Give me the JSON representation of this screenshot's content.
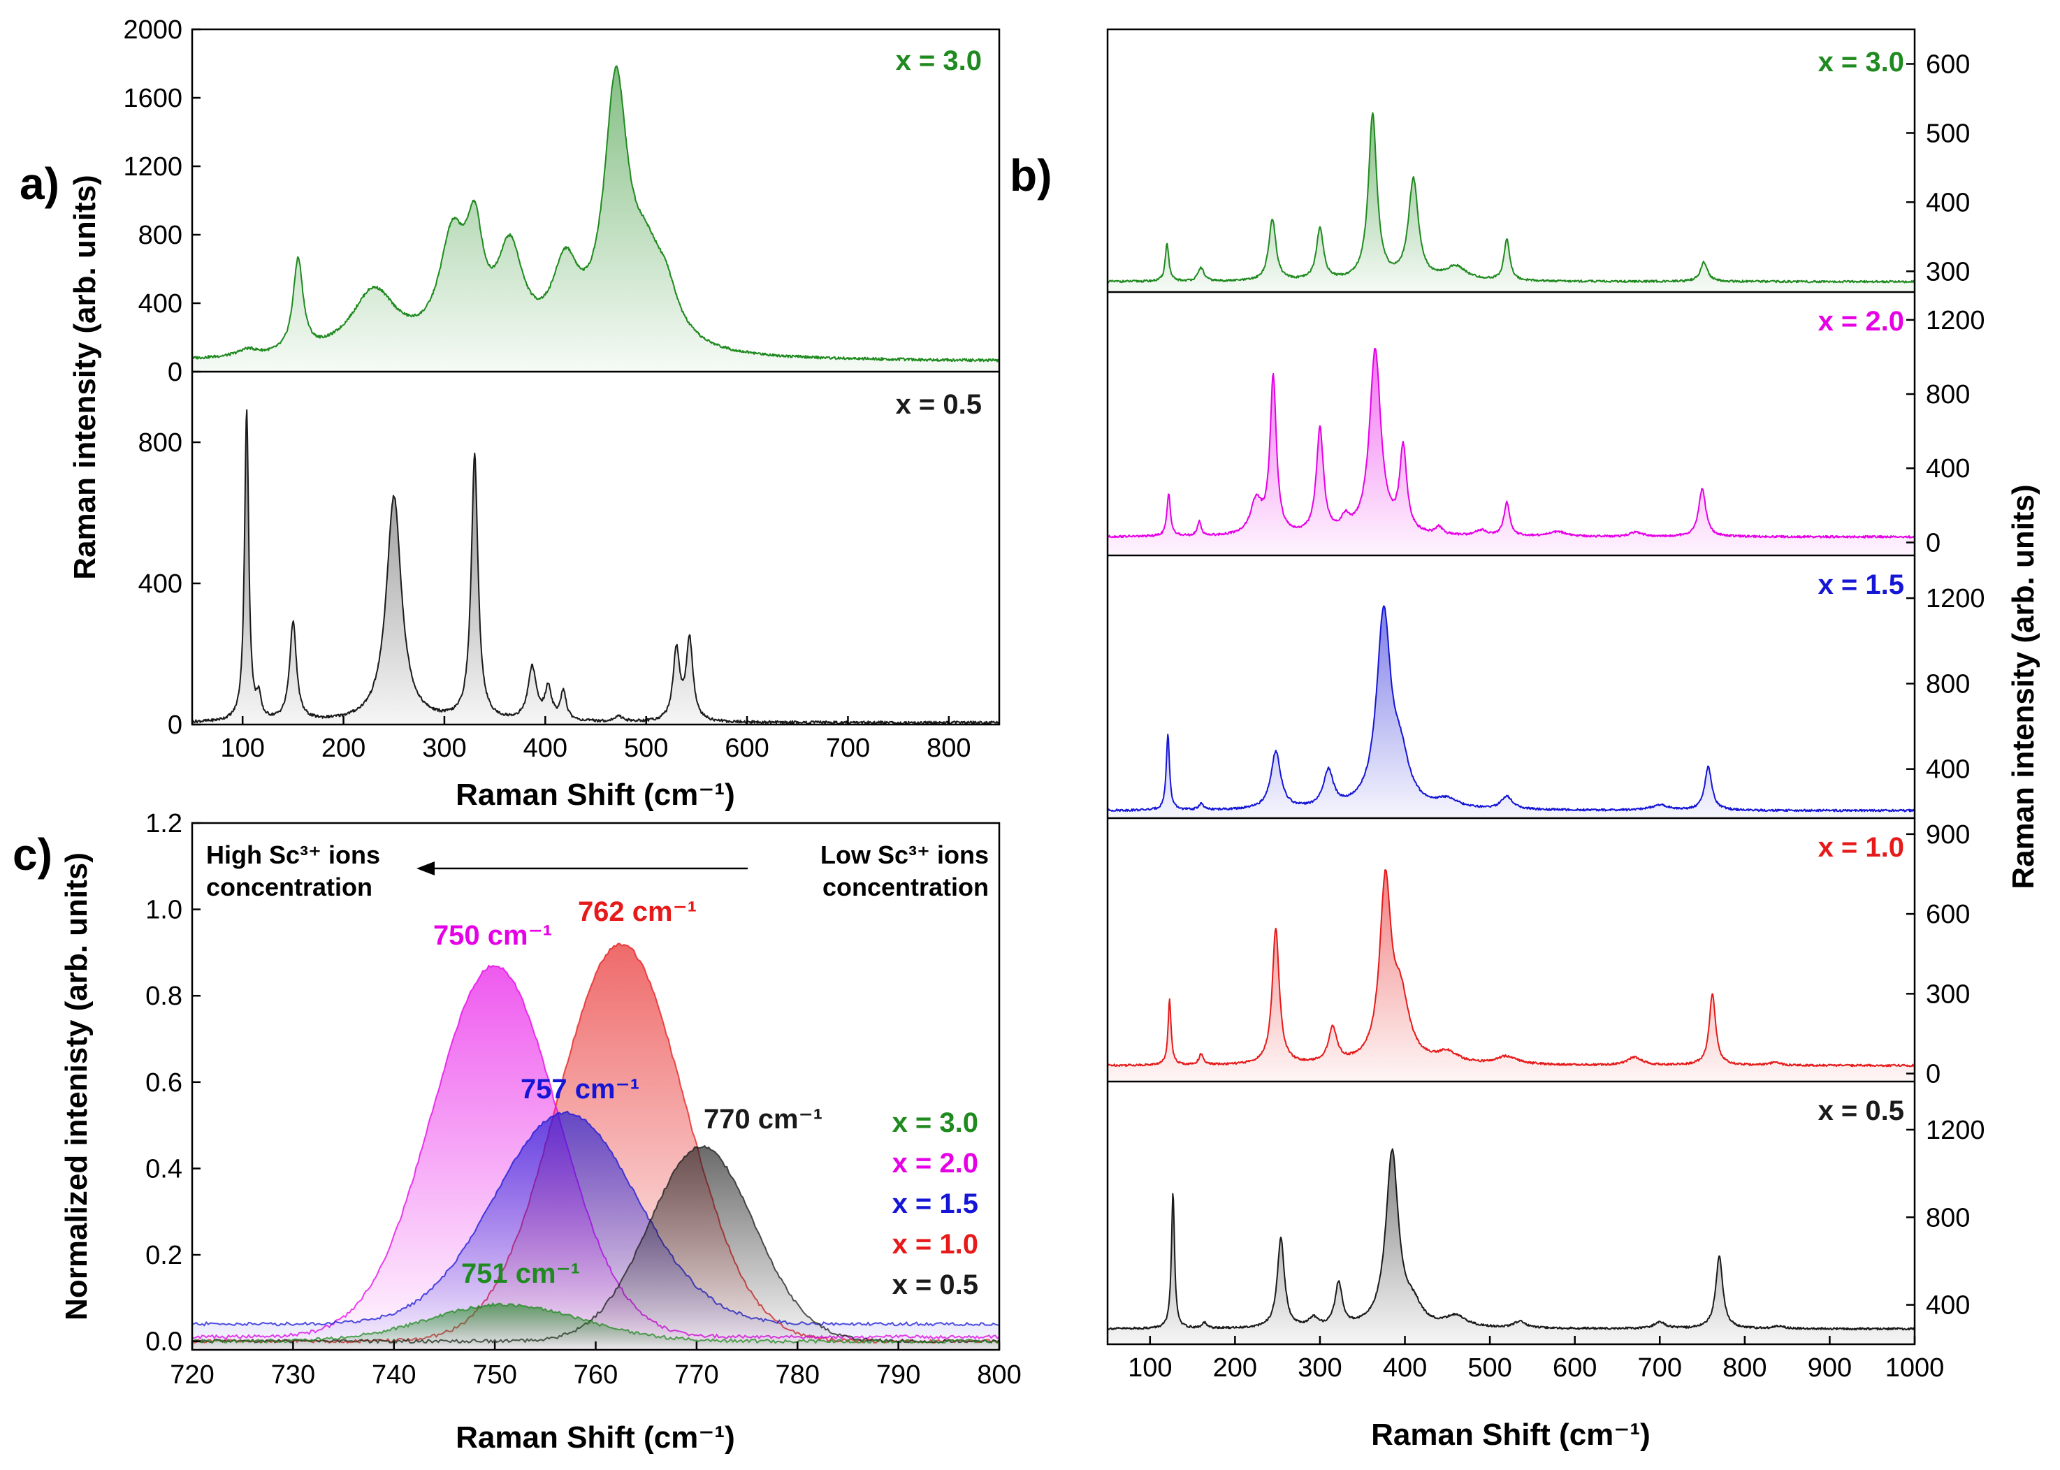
{
  "panel_labels": {
    "a": "a)",
    "b": "b)",
    "c": "c)"
  },
  "colors": {
    "x30": "#1f8a1f",
    "x20": "#e600e6",
    "x15": "#1515d6",
    "x10": "#e61a1a",
    "x05": "#1a1a1a"
  },
  "chart_data": [
    {
      "id": "a",
      "type": "line",
      "title": "",
      "xlabel": "Raman Shift (cm⁻¹)",
      "ylabel": "Raman intensity (arb. units)",
      "xlim": [
        50,
        850
      ],
      "xticks": [
        100,
        200,
        300,
        400,
        500,
        600,
        700,
        800
      ],
      "series": [
        {
          "name": "x = 3.0",
          "ylim": [
            0,
            2000
          ],
          "yticks": [
            0,
            400,
            800,
            1200,
            1600,
            2000
          ],
          "baseline": 60,
          "peaks": [
            [
              105,
              40,
              12
            ],
            [
              155,
              540,
              6
            ],
            [
              230,
              380,
              28
            ],
            [
              308,
              620,
              16
            ],
            [
              330,
              560,
              10
            ],
            [
              365,
              560,
              16
            ],
            [
              420,
              450,
              16
            ],
            [
              470,
              1480,
              14
            ],
            [
              500,
              450,
              22
            ],
            [
              520,
              200,
              14
            ]
          ]
        },
        {
          "name": "x = 0.5",
          "ylim": [
            0,
            1000
          ],
          "yticks": [
            0,
            400,
            800
          ],
          "baseline": 5,
          "peaks": [
            [
              104,
              880,
              2.5
            ],
            [
              116,
              60,
              2.5
            ],
            [
              150,
              280,
              4
            ],
            [
              250,
              640,
              9
            ],
            [
              330,
              750,
              4
            ],
            [
              387,
              150,
              5
            ],
            [
              403,
              90,
              4
            ],
            [
              418,
              80,
              3.5
            ],
            [
              473,
              15,
              5
            ],
            [
              530,
              200,
              4
            ],
            [
              543,
              230,
              4
            ]
          ]
        }
      ]
    },
    {
      "id": "b",
      "type": "line",
      "xlabel": "Raman Shift (cm⁻¹)",
      "ylabel": "Raman intensity (arb. units)",
      "xlim": [
        50,
        1000
      ],
      "xticks": [
        100,
        200,
        300,
        400,
        500,
        600,
        700,
        800,
        900,
        1000
      ],
      "series": [
        {
          "name": "x = 3.0",
          "ylim": [
            270,
            650
          ],
          "yticks": [
            300,
            400,
            500,
            600
          ],
          "baseline": 285,
          "peaks": [
            [
              120,
              55,
              2.5
            ],
            [
              160,
              20,
              4
            ],
            [
              244,
              90,
              5
            ],
            [
              300,
              75,
              5
            ],
            [
              362,
              240,
              6
            ],
            [
              410,
              145,
              7
            ],
            [
              460,
              20,
              15
            ],
            [
              520,
              60,
              4
            ],
            [
              752,
              28,
              5
            ]
          ]
        },
        {
          "name": "x = 2.0",
          "ylim": [
            -70,
            1350
          ],
          "yticks": [
            0,
            400,
            800,
            1200
          ],
          "baseline": 30,
          "peaks": [
            [
              122,
              230,
              2.5
            ],
            [
              158,
              80,
              2.5
            ],
            [
              225,
              180,
              8
            ],
            [
              245,
              840,
              4.5
            ],
            [
              300,
              570,
              5
            ],
            [
              330,
              70,
              6
            ],
            [
              365,
              1000,
              8
            ],
            [
              398,
              450,
              5
            ],
            [
              440,
              40,
              5
            ],
            [
              490,
              30,
              8
            ],
            [
              520,
              180,
              4
            ],
            [
              580,
              25,
              12
            ],
            [
              672,
              25,
              8
            ],
            [
              750,
              260,
              5
            ]
          ]
        },
        {
          "name": "x = 1.5",
          "ylim": [
            170,
            1400
          ],
          "yticks": [
            400,
            800,
            1200
          ],
          "baseline": 205,
          "peaks": [
            [
              121,
              355,
              2.3
            ],
            [
              160,
              30,
              3
            ],
            [
              248,
              270,
              7
            ],
            [
              310,
              170,
              7
            ],
            [
              375,
              900,
              10
            ],
            [
              395,
              200,
              12
            ],
            [
              450,
              40,
              15
            ],
            [
              520,
              60,
              8
            ],
            [
              700,
              25,
              12
            ],
            [
              757,
              205,
              5
            ]
          ]
        },
        {
          "name": "x = 1.0",
          "ylim": [
            -30,
            960
          ],
          "yticks": [
            0,
            300,
            600,
            900
          ],
          "baseline": 30,
          "peaks": [
            [
              123,
              245,
              2.2
            ],
            [
              160,
              40,
              3
            ],
            [
              248,
              510,
              5
            ],
            [
              315,
              130,
              6
            ],
            [
              377,
              660,
              8
            ],
            [
              395,
              230,
              12
            ],
            [
              450,
              40,
              15
            ],
            [
              520,
              30,
              15
            ],
            [
              670,
              30,
              10
            ],
            [
              762,
              270,
              4.5
            ],
            [
              835,
              10,
              8
            ]
          ]
        },
        {
          "name": "x = 0.5",
          "ylim": [
            220,
            1420
          ],
          "yticks": [
            400,
            800,
            1200
          ],
          "baseline": 290,
          "peaks": [
            [
              127,
              620,
              2.2
            ],
            [
              164,
              25,
              3
            ],
            [
              254,
              410,
              5
            ],
            [
              292,
              40,
              6
            ],
            [
              322,
              200,
              5
            ],
            [
              385,
              800,
              9
            ],
            [
              410,
              80,
              12
            ],
            [
              460,
              50,
              15
            ],
            [
              535,
              30,
              8
            ],
            [
              700,
              30,
              8
            ],
            [
              770,
              330,
              5
            ],
            [
              840,
              10,
              8
            ]
          ]
        }
      ]
    },
    {
      "id": "c",
      "type": "area",
      "xlabel": "Raman Shift (cm⁻¹)",
      "ylabel": "Normalized intenisty (arb. units)",
      "xlim": [
        720,
        800
      ],
      "xticks": [
        720,
        730,
        740,
        750,
        760,
        770,
        780,
        790,
        800
      ],
      "ylim": [
        -0.02,
        1.2
      ],
      "yticks": [
        0.0,
        0.2,
        0.4,
        0.6,
        0.8,
        1.0,
        1.2
      ],
      "series": [
        {
          "name": "x = 3.0",
          "center": 751,
          "height": 0.085,
          "sigma": 7.5,
          "baseline": 0.0,
          "peak_label": "751 cm⁻¹"
        },
        {
          "name": "x = 2.0",
          "center": 750,
          "height": 0.86,
          "sigma": 6.2,
          "baseline": 0.01,
          "peak_label": "750 cm⁻¹"
        },
        {
          "name": "x = 1.5",
          "center": 757,
          "height": 0.49,
          "sigma": 7.0,
          "baseline": 0.04,
          "peak_label": "757 cm⁻¹"
        },
        {
          "name": "x = 1.0",
          "center": 762.5,
          "height": 0.92,
          "sigma": 6.3,
          "baseline": 0.0,
          "peak_label": "762 cm⁻¹"
        },
        {
          "name": "x = 0.5",
          "center": 770.5,
          "height": 0.45,
          "sigma": 5.2,
          "baseline": 0.0,
          "peak_label": "770 cm⁻¹"
        }
      ],
      "annotation_left": [
        "High Sc³⁺ ions",
        "concentration"
      ],
      "annotation_right": [
        "Low Sc³⁺ ions",
        "concentration"
      ]
    }
  ]
}
